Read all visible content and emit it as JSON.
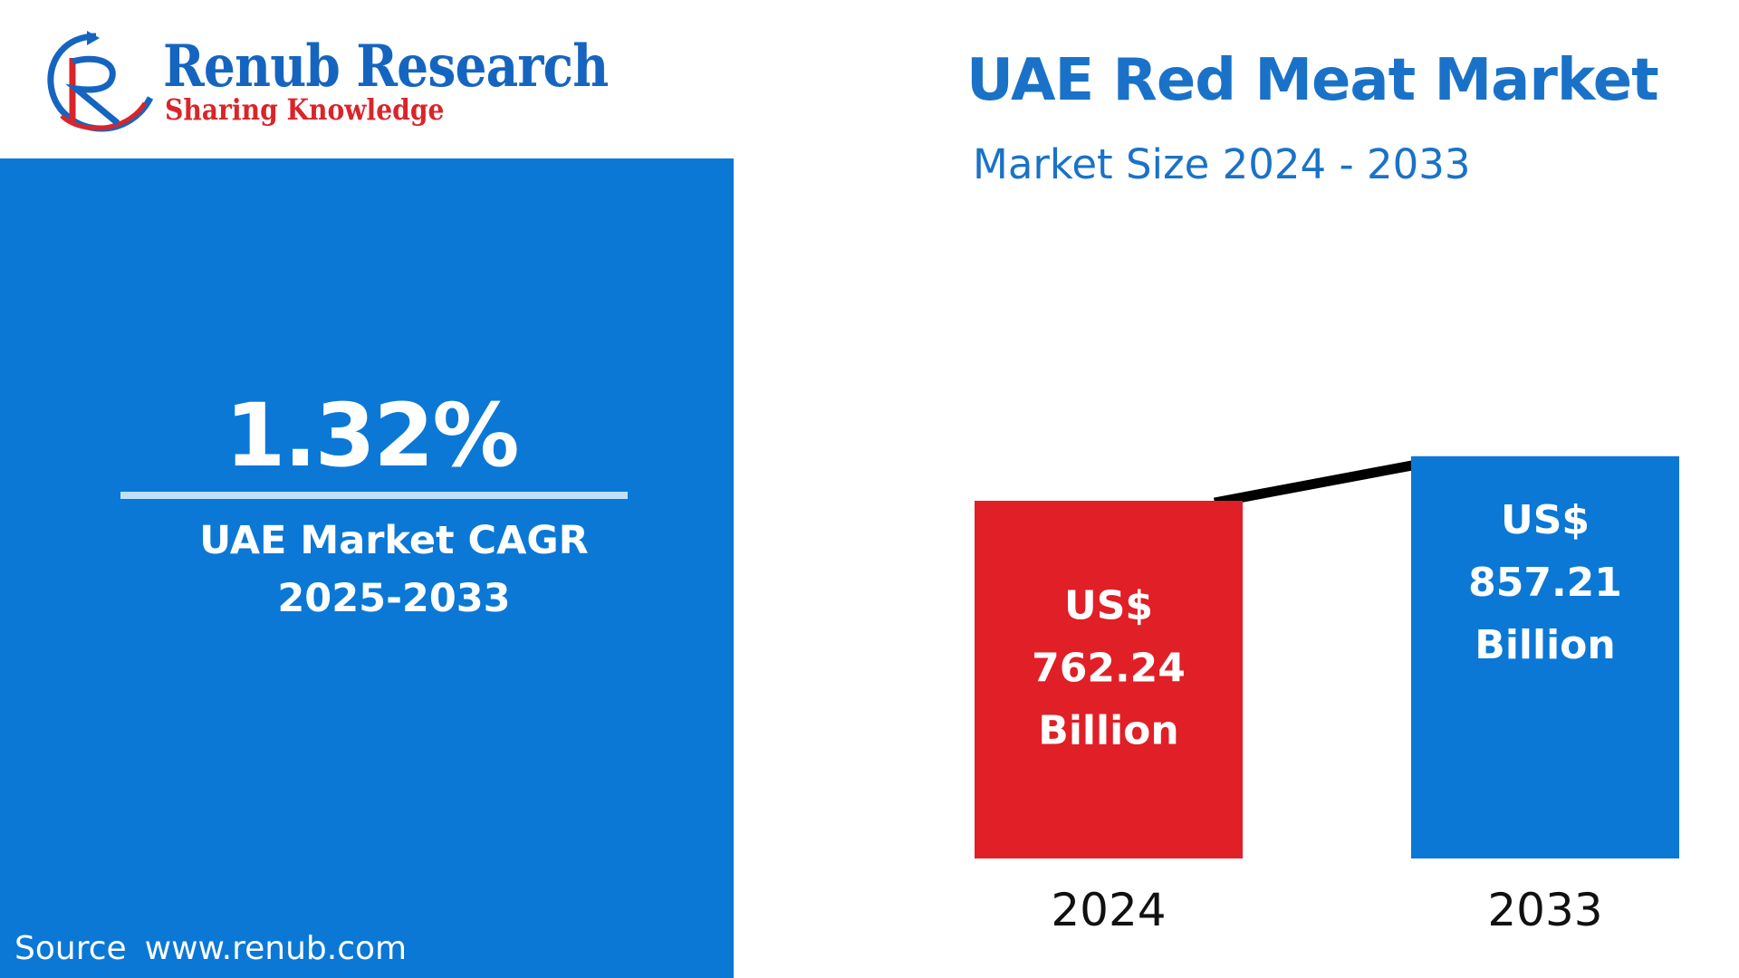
{
  "logo": {
    "title": "Renub Research",
    "tagline": "Sharing Knowledge"
  },
  "cagr": {
    "value": "1.32%",
    "label_line1": "UAE Market CAGR",
    "label_line2": "2025-2033"
  },
  "source": {
    "label": "Source",
    "url": "www.renub.com"
  },
  "chart_data": {
    "type": "bar",
    "title": "UAE Red Meat Market",
    "subtitle": "Market Size 2024 - 2033",
    "categories": [
      "2024",
      "2033"
    ],
    "values": [
      762.24,
      857.21
    ],
    "unit": "US$ Billion",
    "data_labels": [
      [
        "US$",
        "762.24",
        "Billion"
      ],
      [
        "US$",
        "857.21",
        "Billion"
      ]
    ],
    "bar_colors": [
      "#e01f26",
      "#0b78d6"
    ],
    "trend_line": true,
    "trend_line_color": "#000000",
    "axes_visible": false,
    "grid": false
  },
  "colors": {
    "brand_blue": "#0b78d6",
    "title_blue": "#1a72c8",
    "accent_red": "#e01f26"
  }
}
